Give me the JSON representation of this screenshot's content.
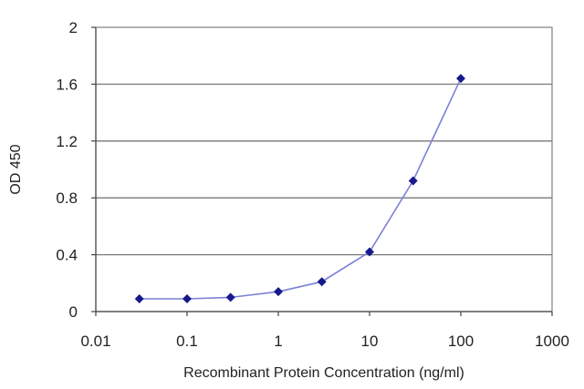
{
  "chart_data": {
    "type": "scatter",
    "title": "",
    "xlabel": "Recombinant Protein Concentration (ng/ml)",
    "ylabel": "OD 450",
    "xscale": "log",
    "xlim": [
      0.01,
      1000
    ],
    "ylim": [
      0,
      2
    ],
    "xticks": [
      "0.01",
      "0.1",
      "1",
      "10",
      "100",
      "1000"
    ],
    "yticks": [
      "0",
      "0.4",
      "0.8",
      "1.2",
      "1.6",
      "2"
    ],
    "grid": "horizontal",
    "legend": "none",
    "colors": {
      "line": "#7b80d6",
      "marker": "#161a8c"
    },
    "series": [
      {
        "x": [
          0.03,
          0.1,
          0.3,
          1,
          3,
          10,
          30,
          100
        ],
        "y": [
          0.09,
          0.09,
          0.1,
          0.14,
          0.21,
          0.42,
          0.92,
          1.64
        ]
      }
    ]
  }
}
